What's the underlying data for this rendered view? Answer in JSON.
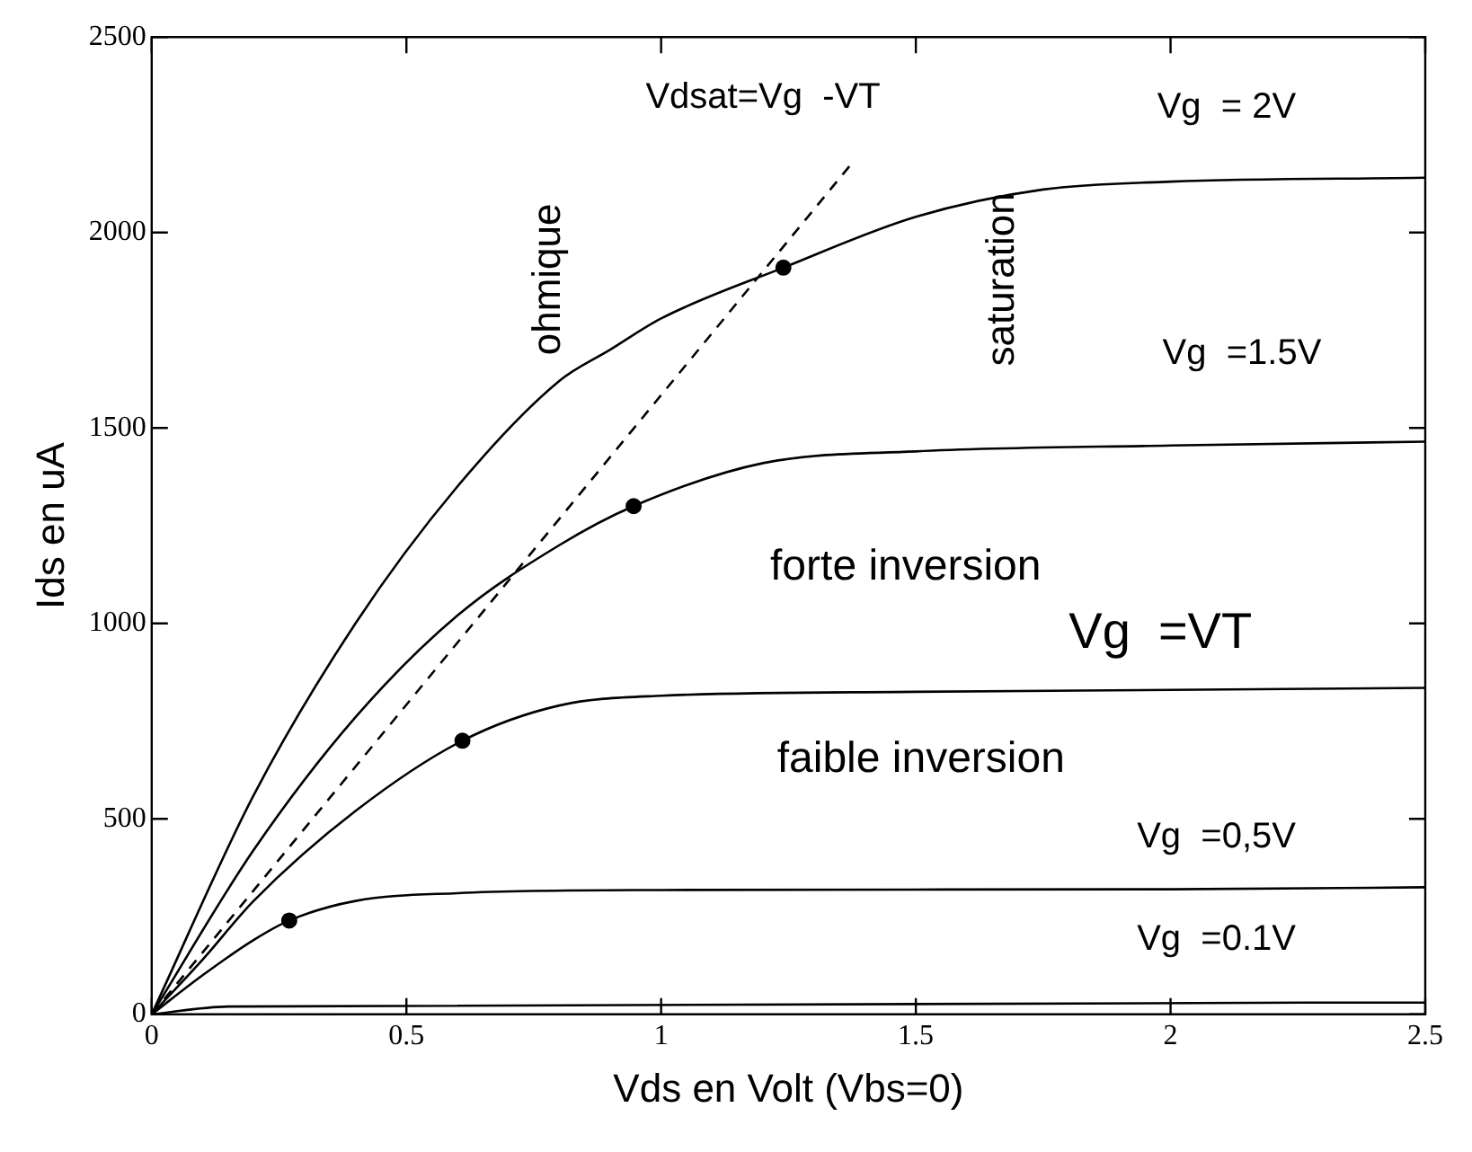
{
  "chart_data": {
    "type": "line",
    "xlabel": "Vds en Volt (Vbs=0)",
    "ylabel": "Ids en uA",
    "xlim": [
      0,
      2.5
    ],
    "xticks": [
      0,
      0.5,
      1,
      1.5,
      2,
      2.5
    ],
    "ylim": [
      0,
      2500
    ],
    "yticks": [
      0,
      500,
      1000,
      1500,
      2000,
      2500
    ],
    "grid": false,
    "legend": false,
    "series": [
      {
        "type": "line",
        "color": "#000000",
        "x": [
          0,
          0.2,
          0.4,
          0.6,
          0.8,
          0.9,
          1.0,
          1.24,
          1.5,
          1.75,
          2.0,
          2.5
        ],
        "values": [
          0,
          560,
          1000,
          1350,
          1620,
          1700,
          1780,
          1910,
          2040,
          2110,
          2130,
          2140
        ]
      },
      {
        "type": "line",
        "color": "#000000",
        "x": [
          0,
          0.2,
          0.4,
          0.6,
          0.8,
          0.946,
          1.2,
          1.5,
          2.0,
          2.5
        ],
        "values": [
          0,
          420,
          760,
          1020,
          1200,
          1300,
          1410,
          1440,
          1455,
          1465
        ]
      },
      {
        "type": "line",
        "color": "#000000",
        "x": [
          0,
          0.1,
          0.2,
          0.4,
          0.61,
          0.8,
          1.0,
          1.5,
          2.0,
          2.5
        ],
        "values": [
          0,
          140,
          290,
          520,
          700,
          790,
          815,
          825,
          830,
          835
        ]
      },
      {
        "type": "line",
        "color": "#000000",
        "x": [
          0,
          0.1,
          0.2,
          0.27,
          0.4,
          0.6,
          1.0,
          2.0,
          2.5
        ],
        "values": [
          0,
          100,
          190,
          240,
          290,
          310,
          318,
          320,
          325
        ]
      },
      {
        "type": "line",
        "color": "#000000",
        "x": [
          0,
          0.15,
          2.5
        ],
        "values": [
          0,
          20,
          30
        ]
      },
      {
        "type": "line",
        "color": "#000000",
        "line_style": "dashed",
        "x": [
          0,
          1.37
        ],
        "values": [
          0,
          2170
        ]
      },
      {
        "type": "scatter",
        "color": "#000000",
        "marker": "circle",
        "x": [
          0.27,
          0.61,
          0.946,
          1.24
        ],
        "values": [
          240,
          700,
          1300,
          1910
        ]
      }
    ],
    "annotations": [
      "Vdsat=Vg  -VT",
      "ohmique",
      "saturation",
      "Vg  = 2V",
      "Vg  =1.5V",
      "forte inversion",
      "Vg  =VT",
      "faible inversion",
      "Vg  =0,5V",
      "Vg  =0.1V"
    ]
  }
}
